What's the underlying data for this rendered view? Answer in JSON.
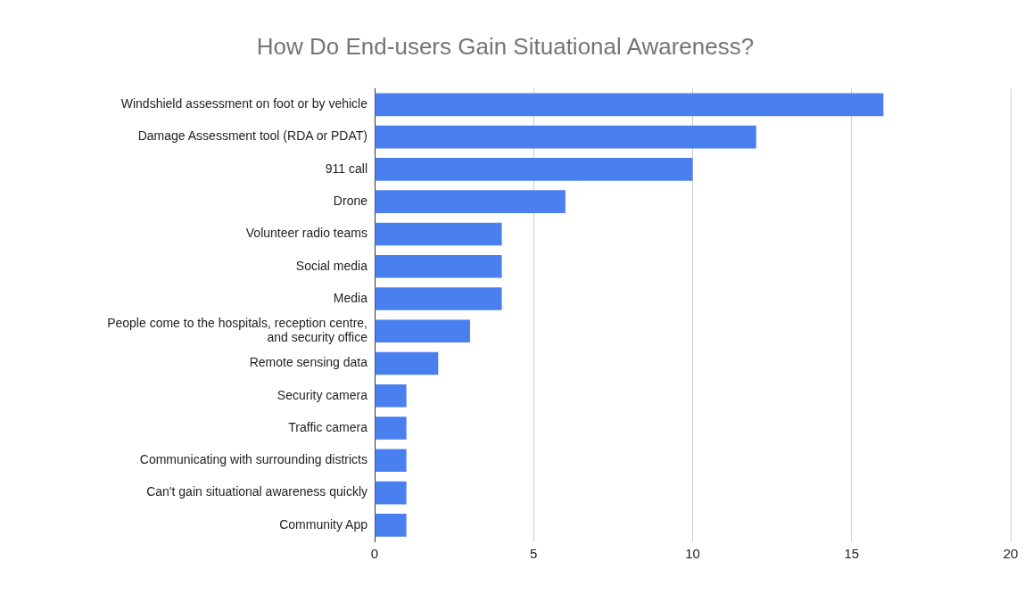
{
  "chart_data": {
    "type": "bar",
    "orientation": "horizontal",
    "title": "How Do End-users Gain Situational Awareness?",
    "categories": [
      "Windshield assessment on foot or by vehicle",
      "Damage Assessment tool (RDA or PDAT)",
      "911 call",
      "Drone",
      "Volunteer radio teams",
      "Social media",
      "Media",
      "People come to the hospitals, reception centre, and security office",
      "Remote sensing data",
      "Security camera",
      "Traffic camera",
      "Communicating with surrounding districts",
      "Can't gain situational awareness quickly",
      "Community App"
    ],
    "values": [
      16,
      12,
      10,
      6,
      4,
      4,
      4,
      3,
      2,
      1,
      1,
      1,
      1,
      1
    ],
    "color": "#4a7ff0",
    "xlim": [
      0,
      20
    ],
    "xticks": [
      0,
      5,
      10,
      15,
      20
    ],
    "grid": "x",
    "legend": false
  }
}
